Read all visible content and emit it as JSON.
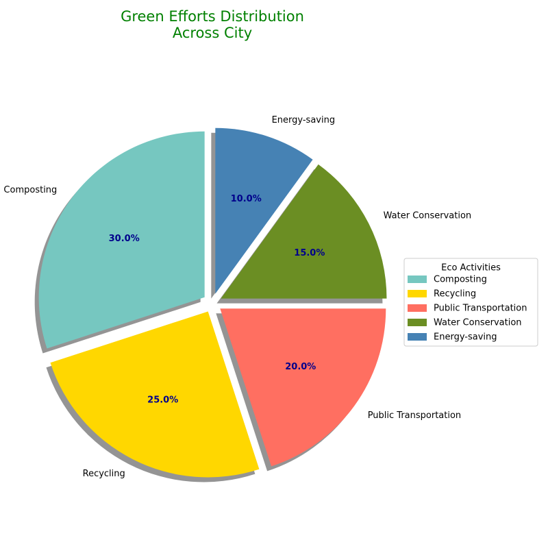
{
  "chart_data": {
    "type": "pie",
    "title": "Green Efforts Distribution\nAcross City",
    "title_color": "#008000",
    "categories": [
      "Composting",
      "Recycling",
      "Public Transportation",
      "Water Conservation",
      "Energy-saving"
    ],
    "values": [
      30,
      25,
      20,
      15,
      10
    ],
    "percent_labels": [
      "30.0%",
      "25.0%",
      "20.0%",
      "15.0%",
      "10.0%"
    ],
    "colors": [
      "#76C7C0",
      "#FFD700",
      "#FF6F61",
      "#6B8E23",
      "#4682B4"
    ],
    "percent_label_color": "#00008B",
    "shadow": true,
    "legend": {
      "title": "Eco Activities",
      "placement": "center-right",
      "entries": [
        "Composting",
        "Recycling",
        "Public Transportation",
        "Water Conservation",
        "Energy-saving"
      ]
    }
  }
}
